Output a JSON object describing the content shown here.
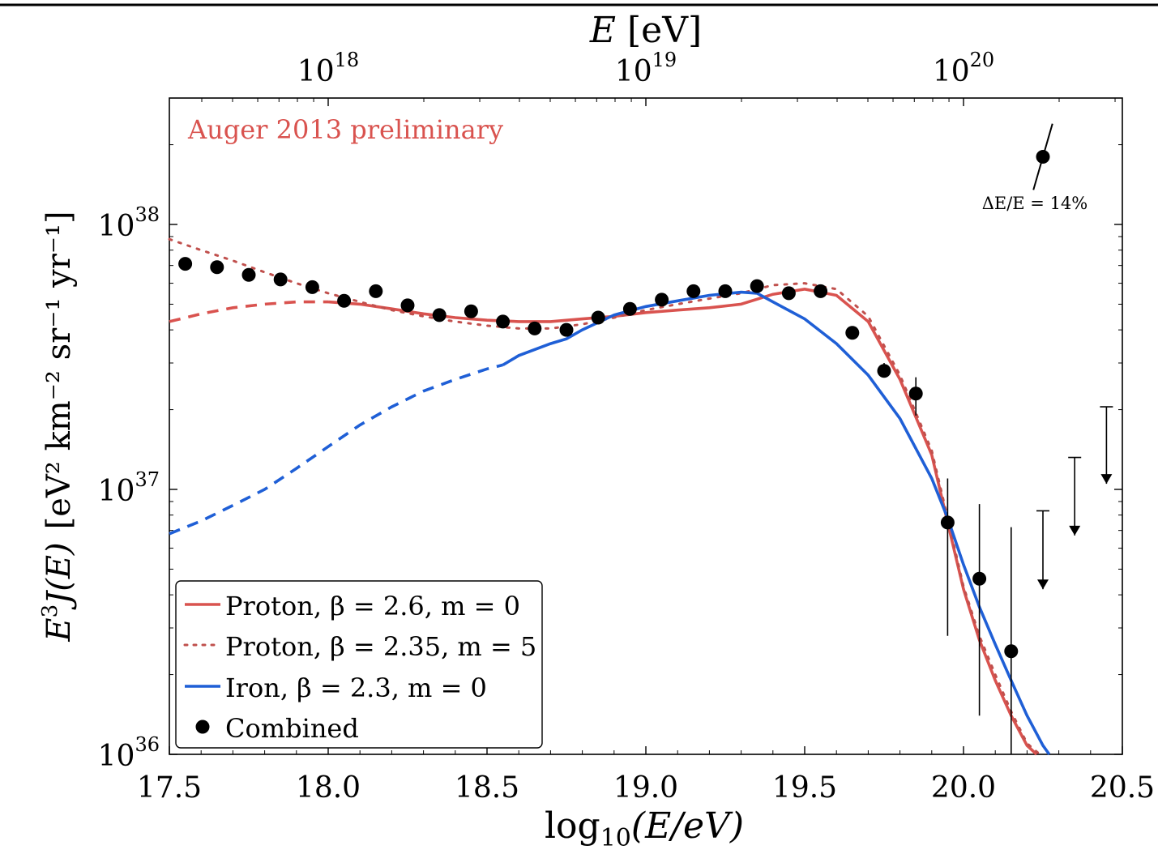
{
  "chart_data": {
    "type": "line",
    "annotation": "Auger 2013 preliminary",
    "xlabel": {
      "prefix": "log",
      "sub": "10",
      "body": "(E/eV)"
    },
    "ylabel": {
      "prefix": "E",
      "prefix_sup": "3",
      "func": "J(E)",
      "units": "[eV² km⁻² sr⁻¹ yr⁻¹]"
    },
    "top_axis_label": {
      "var": "E",
      "unit": "[eV]"
    },
    "xlim": [
      17.5,
      20.5
    ],
    "ylim": [
      1e+36,
      3e+38
    ],
    "yscale": "log",
    "x_ticks": [
      "17.5",
      "18.0",
      "18.5",
      "19.0",
      "19.5",
      "20.0",
      "20.5"
    ],
    "x_tick_values": [
      17.5,
      18.0,
      18.5,
      19.0,
      19.5,
      20.0,
      20.5
    ],
    "y_ticks": [
      {
        "value": 1e+36,
        "base": "10",
        "exp": "36"
      },
      {
        "value": 1e+37,
        "base": "10",
        "exp": "37"
      },
      {
        "value": 1e+38,
        "base": "10",
        "exp": "38"
      }
    ],
    "top_ticks": [
      {
        "value": 18,
        "base": "10",
        "exp": "18"
      },
      {
        "value": 19,
        "base": "10",
        "exp": "19"
      },
      {
        "value": 20,
        "base": "10",
        "exp": "20"
      }
    ],
    "energy_scale_note": "ΔE/E = 14%",
    "legend_position": "bottom-left",
    "legend": [
      {
        "label": "Proton, β = 2.6, m = 0",
        "style": "solid",
        "color": "#d9534f"
      },
      {
        "label": "Proton, β = 2.35, m = 5",
        "style": "dotted",
        "color": "#c0504d"
      },
      {
        "label": "Iron, β = 2.3, m = 0",
        "style": "solid",
        "color": "#1f5fd6"
      },
      {
        "label": "Combined",
        "style": "marker",
        "color": "#000000"
      }
    ],
    "series": [
      {
        "name": "Proton, β = 2.6, m = 0",
        "color": "#d9534f",
        "dashed_until": 18.0,
        "x": [
          17.5,
          17.6,
          17.7,
          17.8,
          17.9,
          18.0,
          18.1,
          18.2,
          18.3,
          18.4,
          18.5,
          18.6,
          18.7,
          18.8,
          18.9,
          19.0,
          19.1,
          19.2,
          19.3,
          19.4,
          19.5,
          19.6,
          19.7,
          19.8,
          19.9,
          19.95,
          20.0,
          20.05,
          20.1,
          20.15,
          20.2,
          20.23
        ],
        "y": [
          4.3e+37,
          4.6e+37,
          4.85e+37,
          5e+37,
          5.1e+37,
          5.1e+37,
          5e+37,
          4.8e+37,
          4.6e+37,
          4.45e+37,
          4.35e+37,
          4.3e+37,
          4.3e+37,
          4.4e+37,
          4.5e+37,
          4.65e+37,
          4.75e+37,
          4.85e+37,
          5e+37,
          5.45e+37,
          5.7e+37,
          5.4e+37,
          4.3e+37,
          2.6e+37,
          1.35e+37,
          7.5e+36,
          4.2e+36,
          2.7e+36,
          1.9e+36,
          1.4e+36,
          1.08e+36,
          1e+36
        ]
      },
      {
        "name": "Proton, β = 2.35, m = 5",
        "color": "#c0504d",
        "x": [
          17.5,
          17.6,
          17.7,
          17.8,
          17.9,
          18.0,
          18.1,
          18.2,
          18.3,
          18.4,
          18.5,
          18.6,
          18.7,
          18.8,
          18.9,
          19.0,
          19.1,
          19.2,
          19.3,
          19.4,
          19.5,
          19.6,
          19.7,
          19.8,
          19.9,
          19.95,
          20.0,
          20.05,
          20.1,
          20.15,
          20.2,
          20.24
        ],
        "y": [
          8.8e+37,
          8e+37,
          7.3e+37,
          6.6e+37,
          6e+37,
          5.5e+37,
          5.1e+37,
          4.75e+37,
          4.5e+37,
          4.3e+37,
          4.15e+37,
          4.05e+37,
          4.05e+37,
          4.2e+37,
          4.45e+37,
          4.75e+37,
          5e+37,
          5.25e+37,
          5.5e+37,
          5.9e+37,
          6e+37,
          5.7e+37,
          4.5e+37,
          2.7e+37,
          1.4e+37,
          7.8e+36,
          4.3e+36,
          2.8e+36,
          2e+36,
          1.45e+36,
          1.1e+36,
          1e+36
        ]
      },
      {
        "name": "Iron, β = 2.3, m = 0",
        "color": "#1f5fd6",
        "dashed_until": 18.55,
        "x": [
          17.5,
          17.6,
          17.7,
          17.8,
          17.9,
          18.0,
          18.1,
          18.2,
          18.3,
          18.4,
          18.5,
          18.55,
          18.6,
          18.7,
          18.75,
          18.8,
          18.9,
          19.0,
          19.1,
          19.2,
          19.3,
          19.35,
          19.4,
          19.5,
          19.6,
          19.7,
          19.8,
          19.9,
          19.95,
          20.0,
          20.05,
          20.1,
          20.15,
          20.2,
          20.25,
          20.27
        ],
        "y": [
          6.8e+36,
          7.6e+36,
          8.7e+36,
          1e+37,
          1.2e+37,
          1.45e+37,
          1.75e+37,
          2.05e+37,
          2.35e+37,
          2.6e+37,
          2.85e+37,
          2.95e+37,
          3.2e+37,
          3.55e+37,
          3.7e+37,
          4e+37,
          4.55e+37,
          4.9e+37,
          5.15e+37,
          5.4e+37,
          5.55e+37,
          5.5e+37,
          5.1e+37,
          4.4e+37,
          3.55e+37,
          2.7e+37,
          1.85e+37,
          1.1e+37,
          7.8e+36,
          5.2e+36,
          3.6e+36,
          2.6e+36,
          1.9e+36,
          1.4e+36,
          1.08e+36,
          1e+36
        ]
      },
      {
        "name": "Combined",
        "type": "scatter",
        "color": "#000000",
        "x": [
          17.55,
          17.65,
          17.75,
          17.85,
          17.95,
          18.05,
          18.15,
          18.25,
          18.35,
          18.45,
          18.55,
          18.65,
          18.75,
          18.85,
          18.95,
          19.05,
          19.15,
          19.25,
          19.35,
          19.45,
          19.55,
          19.65,
          19.75,
          19.85,
          19.95,
          20.05,
          20.15,
          20.25
        ],
        "y": [
          7.1e+37,
          6.9e+37,
          6.45e+37,
          6.2e+37,
          5.8e+37,
          5.15e+37,
          5.6e+37,
          4.95e+37,
          4.55e+37,
          4.7e+37,
          4.3e+37,
          4.05e+37,
          4e+37,
          4.45e+37,
          4.8e+37,
          5.2e+37,
          5.6e+37,
          5.6e+37,
          5.85e+37,
          5.5e+37,
          5.6e+37,
          3.9e+37,
          2.8e+37,
          2.3e+37,
          7.5e+36,
          4.6e+36,
          2.45e+36,
          1.8e+38
        ],
        "y_err_low": [
          null,
          null,
          null,
          null,
          null,
          null,
          null,
          null,
          null,
          null,
          null,
          null,
          null,
          null,
          null,
          null,
          null,
          null,
          null,
          null,
          null,
          null,
          2.65e+37,
          1.9e+37,
          2.8e+36,
          1.4e+36,
          1e+36,
          null
        ],
        "y_err_high": [
          null,
          null,
          null,
          null,
          null,
          null,
          null,
          null,
          null,
          null,
          null,
          null,
          null,
          null,
          null,
          null,
          null,
          null,
          null,
          null,
          null,
          null,
          3e+37,
          2.65e+37,
          1.1e+37,
          8.8e+36,
          7.2e+36,
          null
        ]
      }
    ],
    "energy_scale_bar": {
      "center": [
        20.25,
        1.8e+38
      ],
      "x": [
        20.22,
        20.28
      ],
      "y": [
        1.35e+38,
        2.4e+38
      ]
    },
    "upper_limits": [
      {
        "x": 20.25,
        "y_top": 8.3e+36,
        "y_arrow": 4.2e+36
      },
      {
        "x": 20.35,
        "y_top": 1.32e+37,
        "y_arrow": 6.7e+36
      },
      {
        "x": 20.45,
        "y_top": 2.05e+37,
        "y_arrow": 1.05e+37
      }
    ]
  }
}
